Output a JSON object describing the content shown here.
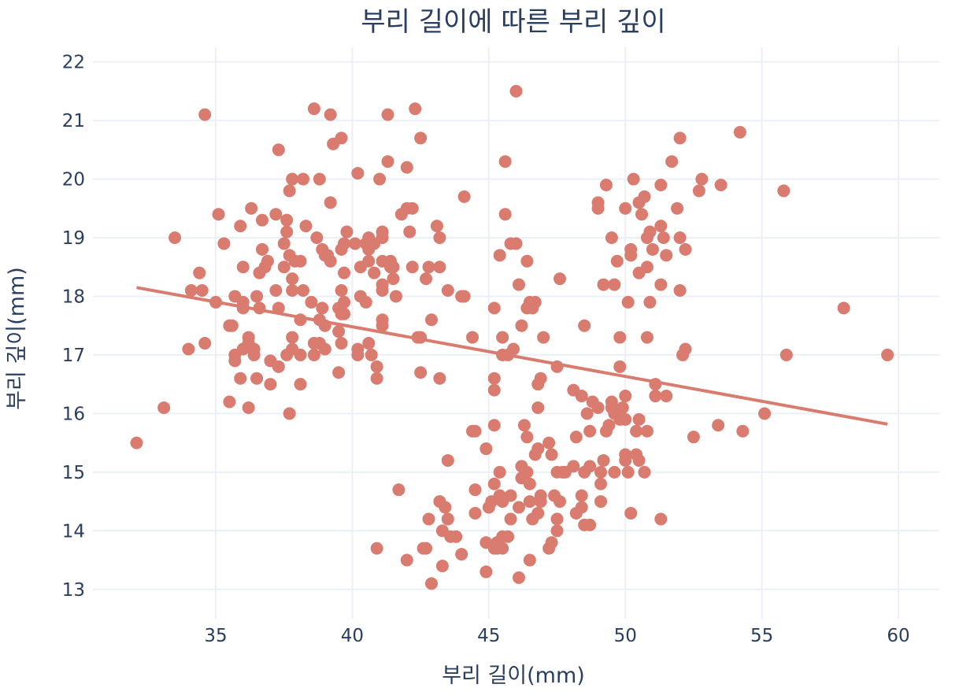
{
  "chart_data": {
    "type": "scatter",
    "title": "부리 길이에 따른 부리 깊이",
    "xlabel": "부리 길이(mm)",
    "ylabel": "부리 깊이(mm)",
    "xlim": [
      30.5,
      61.5
    ],
    "ylim": [
      12.5,
      22.25
    ],
    "xticks": [
      35,
      40,
      45,
      50,
      55,
      60
    ],
    "yticks": [
      13,
      14,
      15,
      16,
      17,
      18,
      19,
      20,
      21,
      22
    ],
    "grid": true,
    "marker_color": "#d97b6e",
    "trendline": {
      "x": [
        32.1,
        59.6
      ],
      "y": [
        18.15,
        15.82
      ]
    },
    "points": [
      [
        32.1,
        15.5
      ],
      [
        33.1,
        16.1
      ],
      [
        33.5,
        19.0
      ],
      [
        34.0,
        17.1
      ],
      [
        34.1,
        18.1
      ],
      [
        34.4,
        18.4
      ],
      [
        34.5,
        18.1
      ],
      [
        34.6,
        17.2
      ],
      [
        34.6,
        21.1
      ],
      [
        35.0,
        17.9
      ],
      [
        35.1,
        19.4
      ],
      [
        35.3,
        18.9
      ],
      [
        35.5,
        16.2
      ],
      [
        35.5,
        17.5
      ],
      [
        35.6,
        17.5
      ],
      [
        35.7,
        16.9
      ],
      [
        35.7,
        17.0
      ],
      [
        35.7,
        18.0
      ],
      [
        35.9,
        16.6
      ],
      [
        35.9,
        19.2
      ],
      [
        36.0,
        17.1
      ],
      [
        36.0,
        17.8
      ],
      [
        36.0,
        17.9
      ],
      [
        36.0,
        18.5
      ],
      [
        36.2,
        16.1
      ],
      [
        36.2,
        17.2
      ],
      [
        36.2,
        17.3
      ],
      [
        36.3,
        19.5
      ],
      [
        36.4,
        17.0
      ],
      [
        36.4,
        17.1
      ],
      [
        36.5,
        16.6
      ],
      [
        36.5,
        18.0
      ],
      [
        36.6,
        17.8
      ],
      [
        36.6,
        18.4
      ],
      [
        36.7,
        18.8
      ],
      [
        36.7,
        19.3
      ],
      [
        36.8,
        18.5
      ],
      [
        36.9,
        18.6
      ],
      [
        37.0,
        16.5
      ],
      [
        37.0,
        16.9
      ],
      [
        37.2,
        18.1
      ],
      [
        37.2,
        19.4
      ],
      [
        37.3,
        16.8
      ],
      [
        37.3,
        17.8
      ],
      [
        37.3,
        20.5
      ],
      [
        37.5,
        18.5
      ],
      [
        37.5,
        18.9
      ],
      [
        37.6,
        17.0
      ],
      [
        37.6,
        19.1
      ],
      [
        37.6,
        19.3
      ],
      [
        37.7,
        16.0
      ],
      [
        37.7,
        18.7
      ],
      [
        37.7,
        19.8
      ],
      [
        37.8,
        17.1
      ],
      [
        37.8,
        17.3
      ],
      [
        37.8,
        18.1
      ],
      [
        37.8,
        18.3
      ],
      [
        37.8,
        20.0
      ],
      [
        37.9,
        18.6
      ],
      [
        38.1,
        16.5
      ],
      [
        38.1,
        17.0
      ],
      [
        38.1,
        17.6
      ],
      [
        38.1,
        18.6
      ],
      [
        38.2,
        18.1
      ],
      [
        38.2,
        20.0
      ],
      [
        38.3,
        19.2
      ],
      [
        38.5,
        17.9
      ],
      [
        38.6,
        17.0
      ],
      [
        38.6,
        17.2
      ],
      [
        38.6,
        21.2
      ],
      [
        38.7,
        19.0
      ],
      [
        38.8,
        17.2
      ],
      [
        38.8,
        17.6
      ],
      [
        38.8,
        20.0
      ],
      [
        38.9,
        17.8
      ],
      [
        38.9,
        18.8
      ],
      [
        39.0,
        17.1
      ],
      [
        39.0,
        17.5
      ],
      [
        39.0,
        18.7
      ],
      [
        39.1,
        18.7
      ],
      [
        39.2,
        18.6
      ],
      [
        39.2,
        19.6
      ],
      [
        39.2,
        21.1
      ],
      [
        39.3,
        20.6
      ],
      [
        39.5,
        16.7
      ],
      [
        39.5,
        17.4
      ],
      [
        39.5,
        17.8
      ],
      [
        39.6,
        17.2
      ],
      [
        39.6,
        17.7
      ],
      [
        39.6,
        18.1
      ],
      [
        39.6,
        18.8
      ],
      [
        39.6,
        20.7
      ],
      [
        39.7,
        17.7
      ],
      [
        39.7,
        17.9
      ],
      [
        39.7,
        18.4
      ],
      [
        39.7,
        18.9
      ],
      [
        39.8,
        19.1
      ],
      [
        40.1,
        18.9
      ],
      [
        40.2,
        17.0
      ],
      [
        40.2,
        17.1
      ],
      [
        40.2,
        20.1
      ],
      [
        40.3,
        18.0
      ],
      [
        40.3,
        18.5
      ],
      [
        40.5,
        17.9
      ],
      [
        40.5,
        18.9
      ],
      [
        40.6,
        17.2
      ],
      [
        40.6,
        18.6
      ],
      [
        40.6,
        18.8
      ],
      [
        40.6,
        19.0
      ],
      [
        40.7,
        17.0
      ],
      [
        40.8,
        18.4
      ],
      [
        40.8,
        18.9
      ],
      [
        40.9,
        16.6
      ],
      [
        40.9,
        16.8
      ],
      [
        41.0,
        20.0
      ],
      [
        41.1,
        17.5
      ],
      [
        41.1,
        17.6
      ],
      [
        41.1,
        18.1
      ],
      [
        41.1,
        18.2
      ],
      [
        41.1,
        18.6
      ],
      [
        41.1,
        19.0
      ],
      [
        41.1,
        19.1
      ],
      [
        41.3,
        20.3
      ],
      [
        41.3,
        21.1
      ],
      [
        41.4,
        18.5
      ],
      [
        41.4,
        18.6
      ],
      [
        41.5,
        18.3
      ],
      [
        41.5,
        18.5
      ],
      [
        41.6,
        18.0
      ],
      [
        41.8,
        19.4
      ],
      [
        42.0,
        19.5
      ],
      [
        42.0,
        20.2
      ],
      [
        42.1,
        19.1
      ],
      [
        42.2,
        18.5
      ],
      [
        42.2,
        19.5
      ],
      [
        42.3,
        21.2
      ],
      [
        42.4,
        17.3
      ],
      [
        42.5,
        16.7
      ],
      [
        42.5,
        17.3
      ],
      [
        42.5,
        20.7
      ],
      [
        42.7,
        18.3
      ],
      [
        42.8,
        18.5
      ],
      [
        42.9,
        17.6
      ],
      [
        43.2,
        16.6
      ],
      [
        43.2,
        18.5
      ],
      [
        43.2,
        19.0
      ],
      [
        43.1,
        19.2
      ],
      [
        43.5,
        18.1
      ],
      [
        44.0,
        18.0
      ],
      [
        44.1,
        19.7
      ],
      [
        44.1,
        18.0
      ],
      [
        44.4,
        17.3
      ],
      [
        44.5,
        15.7
      ],
      [
        45.2,
        16.4
      ],
      [
        45.2,
        16.6
      ],
      [
        45.2,
        17.8
      ],
      [
        45.4,
        18.7
      ],
      [
        45.6,
        20.3
      ],
      [
        45.6,
        19.4
      ],
      [
        45.8,
        18.9
      ],
      [
        46.0,
        18.9
      ],
      [
        46.1,
        18.2
      ],
      [
        46.2,
        17.5
      ],
      [
        46.0,
        21.5
      ],
      [
        45.5,
        17.0
      ],
      [
        45.7,
        17.0
      ],
      [
        45.9,
        17.1
      ],
      [
        46.4,
        18.6
      ],
      [
        46.5,
        17.9
      ],
      [
        46.4,
        17.8
      ],
      [
        46.6,
        17.8
      ],
      [
        46.7,
        17.9
      ],
      [
        47.0,
        17.3
      ],
      [
        47.6,
        18.3
      ],
      [
        47.5,
        16.8
      ],
      [
        46.8,
        16.5
      ],
      [
        46.9,
        16.6
      ],
      [
        46.8,
        16.1
      ],
      [
        45.2,
        15.8
      ],
      [
        45.5,
        17.3
      ],
      [
        46.2,
        15.1
      ],
      [
        46.3,
        15.8
      ],
      [
        46.4,
        15.6
      ],
      [
        46.5,
        14.8
      ],
      [
        46.6,
        14.2
      ],
      [
        46.7,
        15.3
      ],
      [
        46.8,
        15.4
      ],
      [
        47.2,
        15.5
      ],
      [
        47.3,
        15.3
      ],
      [
        47.5,
        15.0
      ],
      [
        47.6,
        14.5
      ],
      [
        47.5,
        14.2
      ],
      [
        47.5,
        14.0
      ],
      [
        47.2,
        13.7
      ],
      [
        47.3,
        13.8
      ],
      [
        46.9,
        14.6
      ],
      [
        46.8,
        14.3
      ],
      [
        46.5,
        14.5
      ],
      [
        46.5,
        13.5
      ],
      [
        46.4,
        15.0
      ],
      [
        46.2,
        14.9
      ],
      [
        46.1,
        14.4
      ],
      [
        46.1,
        13.2
      ],
      [
        45.8,
        14.6
      ],
      [
        45.8,
        14.2
      ],
      [
        45.7,
        13.9
      ],
      [
        45.5,
        14.5
      ],
      [
        45.5,
        13.7
      ],
      [
        45.5,
        13.9
      ],
      [
        45.4,
        14.6
      ],
      [
        45.3,
        13.8
      ],
      [
        45.2,
        13.7
      ],
      [
        45.2,
        14.8
      ],
      [
        45.1,
        14.5
      ],
      [
        45.0,
        14.4
      ],
      [
        44.9,
        13.8
      ],
      [
        44.9,
        13.3
      ],
      [
        44.5,
        14.3
      ],
      [
        44.5,
        14.7
      ],
      [
        44.4,
        15.7
      ],
      [
        44.9,
        15.4
      ],
      [
        43.5,
        15.2
      ],
      [
        43.5,
        14.2
      ],
      [
        43.4,
        14.4
      ],
      [
        43.3,
        14.0
      ],
      [
        43.3,
        13.4
      ],
      [
        43.2,
        14.5
      ],
      [
        43.6,
        13.9
      ],
      [
        43.8,
        13.9
      ],
      [
        44.0,
        13.6
      ],
      [
        42.9,
        13.1
      ],
      [
        42.8,
        14.2
      ],
      [
        42.7,
        13.7
      ],
      [
        42.6,
        13.7
      ],
      [
        42.0,
        13.5
      ],
      [
        41.7,
        14.7
      ],
      [
        40.9,
        13.7
      ],
      [
        45.3,
        13.7
      ],
      [
        45.4,
        15.0
      ],
      [
        46.9,
        14.5
      ],
      [
        47.4,
        14.6
      ],
      [
        47.7,
        15.0
      ],
      [
        47.8,
        15.0
      ],
      [
        48.1,
        15.1
      ],
      [
        48.2,
        14.3
      ],
      [
        48.2,
        15.6
      ],
      [
        48.4,
        14.4
      ],
      [
        48.4,
        14.6
      ],
      [
        48.5,
        14.1
      ],
      [
        48.5,
        15.0
      ],
      [
        48.6,
        16.0
      ],
      [
        48.7,
        14.1
      ],
      [
        48.7,
        15.1
      ],
      [
        48.7,
        15.7
      ],
      [
        48.8,
        16.2
      ],
      [
        49.0,
        16.1
      ],
      [
        49.1,
        14.5
      ],
      [
        49.1,
        14.8
      ],
      [
        49.1,
        15.0
      ],
      [
        49.2,
        15.2
      ],
      [
        49.3,
        15.7
      ],
      [
        49.4,
        15.8
      ],
      [
        49.5,
        16.1
      ],
      [
        49.5,
        16.2
      ],
      [
        49.6,
        15.0
      ],
      [
        49.6,
        16.0
      ],
      [
        49.8,
        15.9
      ],
      [
        49.8,
        16.8
      ],
      [
        49.9,
        16.1
      ],
      [
        50.0,
        15.2
      ],
      [
        50.0,
        15.3
      ],
      [
        50.0,
        15.9
      ],
      [
        50.0,
        16.3
      ],
      [
        50.1,
        15.0
      ],
      [
        50.2,
        14.3
      ],
      [
        50.4,
        15.3
      ],
      [
        50.4,
        15.7
      ],
      [
        50.5,
        15.2
      ],
      [
        50.5,
        15.9
      ],
      [
        50.7,
        15.0
      ],
      [
        50.8,
        15.7
      ],
      [
        51.1,
        16.3
      ],
      [
        51.1,
        16.5
      ],
      [
        51.3,
        14.2
      ],
      [
        51.5,
        16.3
      ],
      [
        52.5,
        15.6
      ],
      [
        53.4,
        15.8
      ],
      [
        54.3,
        15.7
      ],
      [
        55.1,
        16.0
      ],
      [
        48.1,
        16.4
      ],
      [
        48.4,
        16.3
      ],
      [
        48.5,
        17.5
      ],
      [
        49.0,
        19.5
      ],
      [
        49.0,
        19.6
      ],
      [
        49.2,
        18.2
      ],
      [
        49.3,
        19.9
      ],
      [
        49.5,
        19.0
      ],
      [
        49.6,
        18.2
      ],
      [
        49.7,
        18.6
      ],
      [
        49.8,
        17.3
      ],
      [
        50.0,
        19.5
      ],
      [
        50.1,
        17.9
      ],
      [
        50.2,
        18.7
      ],
      [
        50.2,
        18.8
      ],
      [
        50.3,
        20.0
      ],
      [
        50.5,
        18.4
      ],
      [
        50.5,
        19.6
      ],
      [
        50.6,
        19.4
      ],
      [
        50.7,
        19.7
      ],
      [
        50.8,
        17.3
      ],
      [
        50.8,
        18.5
      ],
      [
        50.8,
        19.0
      ],
      [
        50.9,
        17.9
      ],
      [
        50.9,
        19.1
      ],
      [
        51.0,
        18.8
      ],
      [
        51.3,
        18.2
      ],
      [
        51.3,
        19.2
      ],
      [
        51.3,
        19.9
      ],
      [
        51.4,
        19.0
      ],
      [
        51.5,
        18.7
      ],
      [
        51.7,
        20.3
      ],
      [
        51.9,
        19.5
      ],
      [
        52.0,
        18.1
      ],
      [
        52.0,
        19.0
      ],
      [
        52.0,
        20.7
      ],
      [
        52.1,
        17.0
      ],
      [
        52.2,
        17.1
      ],
      [
        52.2,
        18.8
      ],
      [
        52.7,
        19.8
      ],
      [
        52.8,
        20.0
      ],
      [
        53.5,
        19.9
      ],
      [
        54.2,
        20.8
      ],
      [
        55.8,
        19.8
      ],
      [
        55.9,
        17.0
      ],
      [
        58.0,
        17.8
      ],
      [
        59.6,
        17.0
      ]
    ]
  }
}
